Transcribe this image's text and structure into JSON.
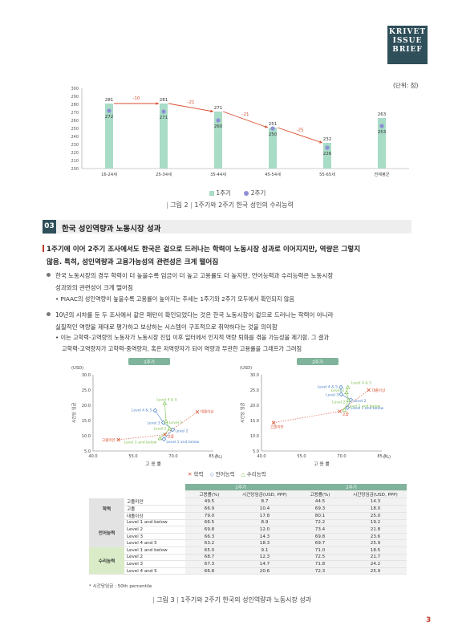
{
  "brand": {
    "line1": "KRIVET",
    "line2": "ISSUE",
    "line3": "BRIEF"
  },
  "figure2": {
    "unit": "(단위: 점)",
    "caption_num": "그림 2",
    "caption": "1주기와 2주기 한국 성인의 수리능력",
    "legend": [
      "1주기",
      "2주기"
    ]
  },
  "chart_data": [
    {
      "type": "bar",
      "categories": [
        "16-24세",
        "25-34세",
        "35-44세",
        "45-54세",
        "55-65세",
        "전체평균"
      ],
      "series": [
        {
          "name": "1주기",
          "values": [
            281,
            281,
            271,
            251,
            232,
            263
          ]
        },
        {
          "name": "2주기",
          "values": [
            272,
            271,
            260,
            250,
            226,
            253
          ]
        }
      ],
      "diff_labels": [
        "-10",
        "-21",
        "-21",
        "-25"
      ],
      "yticks": [
        "300",
        "290",
        "280",
        "270",
        "260",
        "250",
        "240",
        "230",
        "220",
        "210",
        "200"
      ],
      "ylim": [
        200,
        300
      ]
    },
    {
      "type": "scatter",
      "title": "1주기",
      "xlabel": "고 용 률",
      "ylabel": "시간당 임금",
      "xunit": "(%)",
      "yunit": "(USD)",
      "xticks": [
        "40.0",
        "55.0",
        "70.0",
        "85.0"
      ],
      "yticks": [
        "30.0",
        "25.0",
        "20.0",
        "15.0",
        "10.0",
        "5.0"
      ],
      "xlim": [
        40,
        85
      ],
      "ylim": [
        5,
        30
      ],
      "points": [
        {
          "label": "고졸미만",
          "x": 49.5,
          "y": 8.7,
          "group": "학력"
        },
        {
          "label": "고졸",
          "x": 66.9,
          "y": 10.4,
          "group": "학력"
        },
        {
          "label": "대졸이상",
          "x": 79.0,
          "y": 17.8,
          "group": "학력"
        },
        {
          "label": "Level 1 and below",
          "x": 66.5,
          "y": 8.9,
          "group": "언어능력"
        },
        {
          "label": "Level 2",
          "x": 69.8,
          "y": 12.0,
          "group": "언어능력"
        },
        {
          "label": "Level 3",
          "x": 66.3,
          "y": 14.3,
          "group": "언어능력"
        },
        {
          "label": "Level 4 & 5",
          "x": 63.2,
          "y": 18.3,
          "group": "언어능력"
        },
        {
          "label": "Level 1 and below",
          "x": 65.0,
          "y": 9.1,
          "group": "수리능력"
        },
        {
          "label": "Level 2",
          "x": 68.7,
          "y": 12.3,
          "group": "수리능력"
        },
        {
          "label": "Level 3",
          "x": 67.3,
          "y": 14.7,
          "group": "수리능력"
        },
        {
          "label": "Level 4 & 5",
          "x": 66.8,
          "y": 20.6,
          "group": "수리능력"
        }
      ]
    },
    {
      "type": "scatter",
      "title": "2주기",
      "xlabel": "고 용 률",
      "ylabel": "시간당 임금",
      "xunit": "(%)",
      "yunit": "(USD)",
      "xticks": [
        "40.0",
        "55.0",
        "70.0",
        "85.0"
      ],
      "yticks": [
        "30.0",
        "25.0",
        "20.0",
        "15.0",
        "10.0",
        "5.0"
      ],
      "xlim": [
        40,
        85
      ],
      "ylim": [
        5,
        30
      ],
      "points": [
        {
          "label": "고졸미만",
          "x": 44.5,
          "y": 14.3,
          "group": "학력"
        },
        {
          "label": "고졸",
          "x": 69.3,
          "y": 18.0,
          "group": "학력"
        },
        {
          "label": "대졸이상",
          "x": 80.1,
          "y": 25.0,
          "group": "학력"
        },
        {
          "label": "Level 1 and below",
          "x": 72.2,
          "y": 19.2,
          "group": "언어능력"
        },
        {
          "label": "Level 2",
          "x": 73.4,
          "y": 21.8,
          "group": "언어능력"
        },
        {
          "label": "Level 3",
          "x": 69.8,
          "y": 23.6,
          "group": "언어능력"
        },
        {
          "label": "Level 4 & 5",
          "x": 69.7,
          "y": 25.9,
          "group": "언어능력"
        },
        {
          "label": "Level 1 and below",
          "x": 71.0,
          "y": 18.5,
          "group": "수리능력"
        },
        {
          "label": "Level 2",
          "x": 72.5,
          "y": 21.7,
          "group": "수리능력"
        },
        {
          "label": "Level 3",
          "x": 71.8,
          "y": 24.2,
          "group": "수리능력"
        },
        {
          "label": "Level 4 & 5",
          "x": 72.3,
          "y": 25.9,
          "group": "수리능력"
        }
      ]
    }
  ],
  "scatter_legend": [
    "학력",
    "언어능력",
    "수리능력"
  ],
  "colors": {
    "bar1": "#a8dcc6",
    "bar2_marker": "#8e8fd4",
    "arrow": "#d94a2b",
    "edu": "#d94a2b",
    "lang": "#4a7fc7",
    "num": "#7bbf4a",
    "header": "#2f4f5a"
  },
  "section": {
    "number": "03",
    "title": "한국 성인역량과 노동시장 성과",
    "lead_line1": "1주기에 이어 2주기 조사에서도 한국은 겉으로 드러나는 학력이 노동시장 성과로 이어지지만, 역량은 그렇지",
    "lead_line2": "않음. 특히, 성인역량과 고용가능성의 관련성은 크게 떨어짐",
    "b1_line1": "한국 노동시장의 경우 학력이 더 높을수록 임금이 더 높고 고용률도 더 높지만, 언어능력과 수리능력은 노동시장",
    "b1_line2": "성과와의 관련성이 크게 떨어짐",
    "b1_sub": "PIAAC의 성인역량이 높을수록 고용률이 높아지는 추세는 1주기와 2주기 모두에서 확인되지 않음",
    "b2_line1": "10년의 시차를 둔 두 조사에서 같은 패턴이 확인되었다는 것은 한국 노동시장이 겉으로 드러나는 학력이 아니라",
    "b2_line2": "실질적인 역량을 제대로 평가하고 보상하는 시스템이 구조적으로 취약하다는 것을 의미함",
    "b2_sub_line1": "이는 고학력-고역량의 노동자가 노동시장 진입 이후 일터에서 인지적 역량 퇴화를 겪을 가능성을 제기함. 그 결과",
    "b2_sub_line2": "고학력-고역량자가 고학력-중역량자, 혹은 저역량자가 되어 역량과 무관한 고용률을 그래프가 그려짐"
  },
  "table": {
    "head_1": "1주기",
    "head_2": "2주기",
    "col_emp": "고용률(%)",
    "col_wage": "시간당임금(USD, PPP)",
    "groups": [
      {
        "name": "학력",
        "rows": [
          [
            "고졸미만",
            "49.5",
            "8.7",
            "44.5",
            "14.3"
          ],
          [
            "고졸",
            "66.9",
            "10.4",
            "69.3",
            "18.0"
          ],
          [
            "대졸이상",
            "79.0",
            "17.8",
            "80.1",
            "25.0"
          ]
        ]
      },
      {
        "name": "언어능력",
        "rows": [
          [
            "Level 1 and below",
            "66.5",
            "8.9",
            "72.2",
            "19.2"
          ],
          [
            "Level 2",
            "69.8",
            "12.0",
            "73.4",
            "21.8"
          ],
          [
            "Level 3",
            "66.3",
            "14.3",
            "69.8",
            "23.6"
          ],
          [
            "Level 4 and 5",
            "63.2",
            "18.3",
            "69.7",
            "25.9"
          ]
        ]
      },
      {
        "name": "수리능력",
        "rows": [
          [
            "Level 1 and below",
            "65.0",
            "9.1",
            "71.0",
            "18.5"
          ],
          [
            "Level 2",
            "68.7",
            "12.3",
            "72.5",
            "21.7"
          ],
          [
            "Level 3",
            "67.3",
            "14.7",
            "71.8",
            "24.2"
          ],
          [
            "Level 4 and 5",
            "66.8",
            "20.6",
            "72.3",
            "25.9"
          ]
        ]
      }
    ],
    "note": "* 시간당임금 : 50th percentile"
  },
  "figure3": {
    "caption_num": "그림 3",
    "caption": "1주기와 2주기 한국의 성인역량과 노동시장 성과"
  },
  "page_number": "3"
}
